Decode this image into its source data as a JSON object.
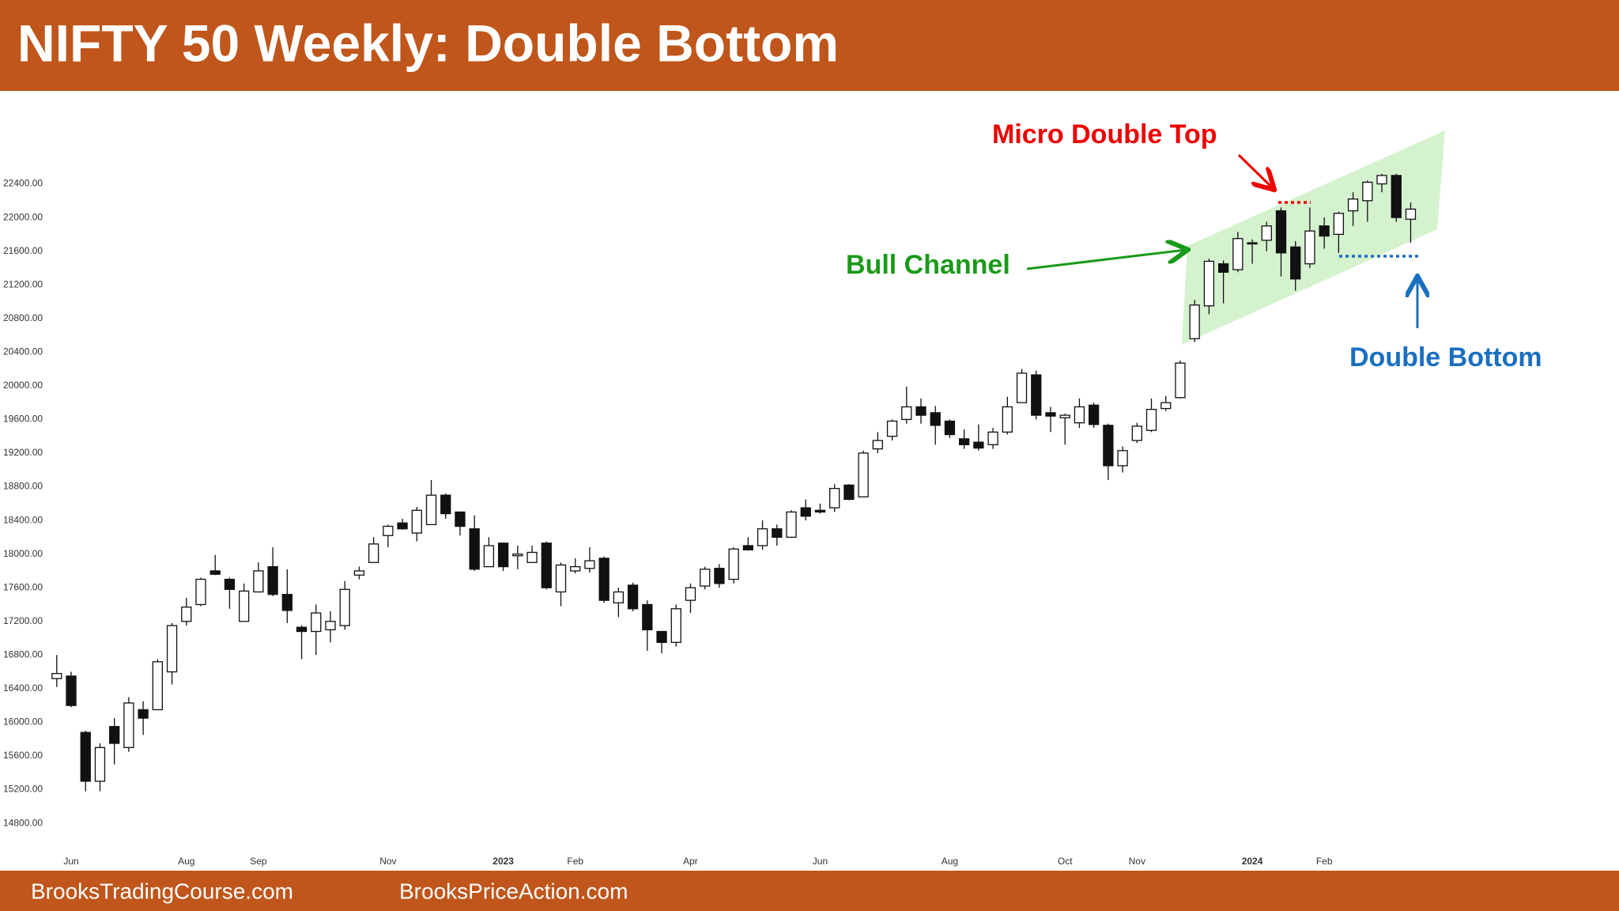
{
  "chart_data": {
    "type": "candlestick",
    "title": "NIFTY 50 Weekly: Double Bottom",
    "categories": [
      null,
      "Jun",
      null,
      null,
      null,
      null,
      null,
      null,
      null,
      "Aug",
      null,
      null,
      null,
      null,
      "Sep",
      null,
      null,
      null,
      null,
      null,
      null,
      null,
      null,
      "Nov",
      null,
      null,
      null,
      null,
      null,
      null,
      null,
      "2023",
      null,
      null,
      null,
      null,
      "Feb",
      null,
      null,
      null,
      null,
      null,
      null,
      null,
      "Apr",
      null,
      null,
      null,
      null,
      null,
      null,
      null,
      null,
      "Jun",
      null,
      null,
      null,
      null,
      null,
      null,
      null,
      null,
      "Aug",
      null,
      null,
      null,
      null,
      null,
      null,
      null,
      "Oct",
      null,
      null,
      null,
      null,
      "Nov",
      null,
      null,
      null,
      null,
      null,
      null,
      null,
      "2024",
      null,
      null,
      null,
      null,
      "Feb",
      null,
      null,
      null,
      null,
      null,
      null
    ],
    "open": [
      16520,
      16550,
      15880,
      15300,
      15950,
      15700,
      16150,
      16150,
      16600,
      17200,
      17400,
      17800,
      17700,
      17200,
      17550,
      17850,
      17520,
      17130,
      17080,
      17100,
      17150,
      17750,
      17900,
      18220,
      18370,
      18250,
      18350,
      18700,
      18500,
      18300,
      17850,
      18130,
      17980,
      17900,
      18130,
      17550,
      17800,
      17830,
      17950,
      17420,
      17630,
      17400,
      17080,
      16950,
      17450,
      17620,
      17830,
      17700,
      18100,
      18100,
      18300,
      18200,
      18550,
      18520,
      18550,
      18820,
      18680,
      19250,
      19400,
      19600,
      19750,
      19680,
      19580,
      19370,
      19330,
      19300,
      19450,
      19800,
      20130,
      19680,
      19620,
      19560,
      19770,
      19530,
      19050,
      19350,
      19470,
      19730,
      19860,
      20560,
      20950,
      21450,
      21380,
      21700,
      21730,
      22080,
      21650,
      21450,
      21900,
      21800,
      22080,
      22200,
      22400,
      22500,
      21980
    ],
    "high": [
      16800,
      16600,
      15900,
      15750,
      16050,
      16300,
      16250,
      16750,
      17180,
      17480,
      17720,
      17990,
      17720,
      17650,
      17900,
      18080,
      17820,
      17150,
      17400,
      17320,
      17680,
      17850,
      18200,
      18350,
      18420,
      18560,
      18880,
      18720,
      18500,
      18460,
      18200,
      18130,
      18100,
      18100,
      18150,
      17900,
      17950,
      18080,
      17970,
      17600,
      17660,
      17450,
      17080,
      17400,
      17650,
      17850,
      17880,
      18080,
      18200,
      18400,
      18350,
      18520,
      18650,
      18600,
      18830,
      18830,
      19230,
      19450,
      19600,
      19990,
      19850,
      19760,
      19600,
      19480,
      19540,
      19500,
      19870,
      20200,
      20180,
      19750,
      19670,
      19850,
      19800,
      19550,
      19280,
      19560,
      19850,
      19880,
      20300,
      21020,
      21510,
      21490,
      21830,
      21740,
      21950,
      22120,
      21720,
      22120,
      22000,
      22070,
      22300,
      22440,
      22520,
      22520,
      22180
    ],
    "low": [
      16420,
      16180,
      15180,
      15180,
      15500,
      15650,
      15850,
      16150,
      16450,
      17150,
      17380,
      17750,
      17350,
      17200,
      17550,
      17500,
      17180,
      16750,
      16800,
      16950,
      17100,
      17700,
      17900,
      18080,
      18290,
      18150,
      18350,
      18420,
      18220,
      17800,
      17850,
      17800,
      17820,
      17900,
      17580,
      17380,
      17770,
      17780,
      17420,
      17250,
      17320,
      16850,
      16820,
      16900,
      17300,
      17580,
      17600,
      17650,
      18040,
      18050,
      18100,
      18200,
      18400,
      18480,
      18500,
      18640,
      18680,
      19200,
      19350,
      19550,
      19550,
      19300,
      19380,
      19250,
      19230,
      19250,
      19420,
      19800,
      19600,
      19450,
      19300,
      19500,
      19500,
      18880,
      18970,
      19320,
      19450,
      19700,
      19850,
      20520,
      20850,
      20980,
      21350,
      21450,
      21600,
      21300,
      21130,
      21400,
      21630,
      21580,
      21900,
      21950,
      22300,
      21950,
      21700
    ],
    "close": [
      16580,
      16200,
      15300,
      15700,
      15750,
      16230,
      16050,
      16720,
      17150,
      17370,
      17700,
      17760,
      17580,
      17560,
      17800,
      17520,
      17330,
      17080,
      17300,
      17200,
      17580,
      17800,
      18120,
      18330,
      18300,
      18520,
      18700,
      18480,
      18330,
      17820,
      18100,
      17850,
      18000,
      18020,
      17600,
      17870,
      17850,
      17920,
      17450,
      17550,
      17350,
      17100,
      16950,
      17350,
      17600,
      17820,
      17650,
      18060,
      18050,
      18300,
      18200,
      18500,
      18450,
      18500,
      18780,
      18650,
      19200,
      19350,
      19580,
      19750,
      19650,
      19530,
      19420,
      19300,
      19260,
      19450,
      19750,
      20150,
      19650,
      19640,
      19650,
      19750,
      19540,
      19050,
      19230,
      19520,
      19720,
      19800,
      20270,
      20960,
      21480,
      21350,
      21750,
      21690,
      21900,
      21580,
      21270,
      21840,
      21780,
      22050,
      22220,
      22420,
      22500,
      22000,
      22100
    ],
    "up_color": "#ffffff",
    "down_color": "#111111",
    "ylim": [
      14500,
      23500
    ],
    "yticks": [
      {
        "value": 14800,
        "label": "14800.00"
      },
      {
        "value": 15200,
        "label": "15200.00"
      },
      {
        "value": 15600,
        "label": "15600.00"
      },
      {
        "value": 16000,
        "label": "16000.00"
      },
      {
        "value": 16400,
        "label": "16400.00"
      },
      {
        "value": 16800,
        "label": "16800.00"
      },
      {
        "value": 17200,
        "label": "17200.00"
      },
      {
        "value": 17600,
        "label": "17600.00"
      },
      {
        "value": 18000,
        "label": "18000.00"
      },
      {
        "value": 18400,
        "label": "18400.00"
      },
      {
        "value": 18800,
        "label": "18800.00"
      },
      {
        "value": 19200,
        "label": "19200.00"
      },
      {
        "value": 19600,
        "label": "19600.00"
      },
      {
        "value": 20000,
        "label": "20000.00"
      },
      {
        "value": 20400,
        "label": "20400.00"
      },
      {
        "value": 20800,
        "label": "20800.00"
      },
      {
        "value": 21200,
        "label": "21200.00"
      },
      {
        "value": 21600,
        "label": "21600.00"
      },
      {
        "value": 22000,
        "label": "22000.00"
      },
      {
        "value": 22400,
        "label": "22400.00"
      }
    ],
    "grid": false,
    "annotations": [
      "Micro Double Top",
      "Bull Channel",
      "Double Bottom"
    ]
  },
  "footer": {
    "left": "BrooksTradingCourse.com",
    "right": "BrooksPriceAction.com"
  }
}
